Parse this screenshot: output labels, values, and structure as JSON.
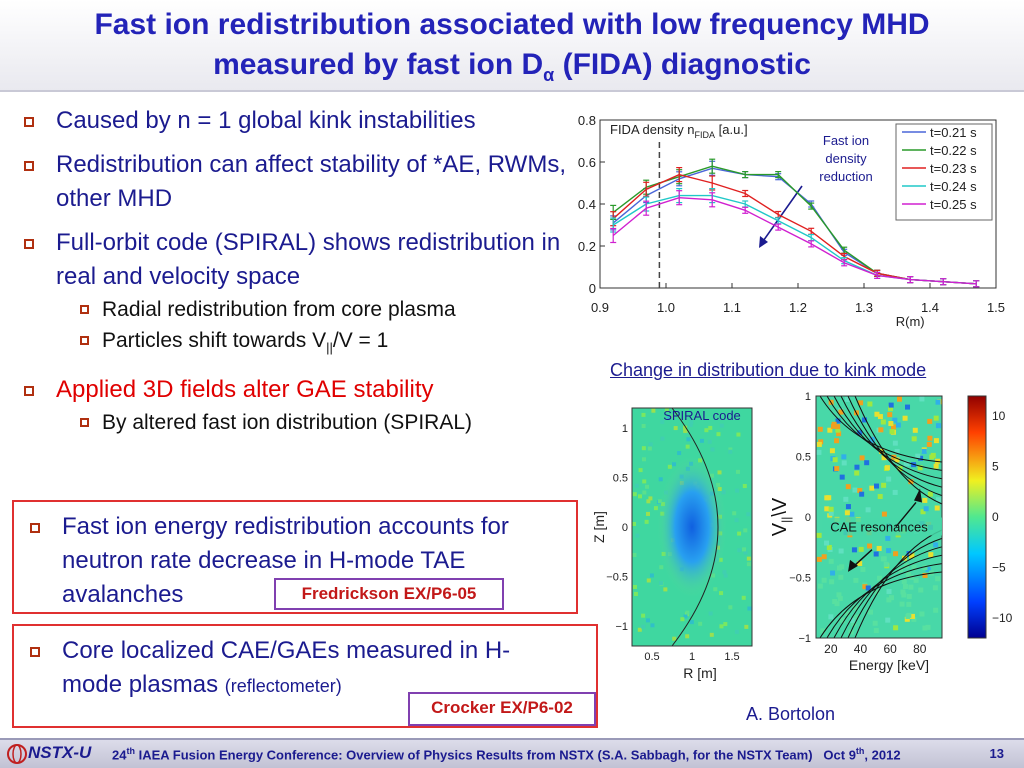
{
  "title": {
    "line1": "Fast ion redistribution associated with low frequency MHD",
    "line2_pre": "measured by fast ion D",
    "line2_sub": "α",
    "line2_post": " (FIDA) diagnostic"
  },
  "bullets": [
    {
      "text": "Caused by n = 1 global kink instabilities"
    },
    {
      "text": "Redistribution can affect stability of *AE, RWMs, other MHD"
    },
    {
      "text": "Full-orbit code (SPIRAL) shows redistribution in real and velocity space"
    },
    {
      "text": "Applied 3D fields alter GAE stability"
    }
  ],
  "sub_bullets": {
    "radial": "Radial redistribution from core plasma",
    "shift_pre": "Particles shift towards V",
    "shift_sub": "||",
    "shift_post": "/V = 1",
    "altered": "By altered fast ion distribution (SPIRAL)"
  },
  "box1": {
    "text": "Fast ion energy redistribution accounts for neutron rate decrease in H-mode TAE avalanches",
    "ref": "Fredrickson EX/P6-05"
  },
  "box2": {
    "text_main": "Core localized CAE/GAEs measured in H-mode plasmas",
    "text_paren": "(reflectometer)",
    "ref": "Crocker EX/P6-02"
  },
  "chart_caption": "Change in distribution due to kink mode",
  "author": "A. Bortolon",
  "footer": {
    "logo": "NSTX-U",
    "sup": "th",
    "text_num": "24",
    "text_rest": " IAEA Fusion Energy Conference: Overview of Physics Results from NSTX (S.A. Sabbagh, for the NSTX Team)",
    "date": "Oct 9",
    "date_sup": "th",
    "year": ", 2012",
    "page": "13"
  },
  "colors": {
    "title": "#2323b8",
    "text": "#1b1b8f",
    "red": "#e00000",
    "box": "#e03030"
  },
  "chart_data": [
    {
      "type": "line",
      "ylabel_pre": "FIDA density n",
      "ylabel_sub": "FIDA",
      "ylabel_post": " [a.u.]",
      "xlabel": "R(m)",
      "xlim": [
        0.9,
        1.5
      ],
      "ylim": [
        0,
        0.8
      ],
      "xticks": [
        "0.9",
        "1.0",
        "1.1",
        "1.2",
        "1.3",
        "1.4",
        "1.5"
      ],
      "yticks": [
        "0",
        "0.2",
        "0.4",
        "0.6",
        "0.8"
      ],
      "dashed_line_x": 0.99,
      "annotation": [
        "Fast ion",
        "density",
        "reduction"
      ],
      "legend_position": "top-right",
      "x": [
        0.92,
        0.97,
        1.02,
        1.07,
        1.12,
        1.17,
        1.22,
        1.27,
        1.32,
        1.37,
        1.42,
        1.47
      ],
      "series": [
        {
          "name": "t=0.21 s",
          "color": "#4a66d8",
          "values": [
            0.31,
            0.44,
            0.52,
            0.57,
            0.54,
            0.53,
            0.4,
            0.17,
            0.07,
            0.04,
            0.03,
            0.02
          ]
        },
        {
          "name": "t=0.22 s",
          "color": "#2a9a2a",
          "values": [
            0.36,
            0.48,
            0.53,
            0.58,
            0.54,
            0.54,
            0.39,
            0.18,
            0.07,
            0.04,
            0.03,
            0.02
          ]
        },
        {
          "name": "t=0.23 s",
          "color": "#e02020",
          "values": [
            0.33,
            0.47,
            0.54,
            0.5,
            0.45,
            0.35,
            0.27,
            0.15,
            0.07,
            0.04,
            0.03,
            0.02
          ]
        },
        {
          "name": "t=0.24 s",
          "color": "#20c8c8",
          "values": [
            0.3,
            0.4,
            0.44,
            0.44,
            0.4,
            0.32,
            0.24,
            0.13,
            0.06,
            0.04,
            0.03,
            0.02
          ]
        },
        {
          "name": "t=0.25 s",
          "color": "#d020d0",
          "values": [
            0.25,
            0.38,
            0.43,
            0.42,
            0.37,
            0.29,
            0.21,
            0.12,
            0.06,
            0.04,
            0.03,
            0.02
          ]
        }
      ]
    },
    {
      "type": "heatmap",
      "label": "SPIRAL code",
      "xlabel": "R [m]",
      "ylabel": "Z [m]",
      "xticks": [
        "0.5",
        "1",
        "1.5"
      ],
      "yticks": [
        "1",
        "0.5",
        "0",
        "−0.5",
        "−1"
      ],
      "xlim": [
        0.25,
        1.75
      ],
      "ylim": [
        -1.2,
        1.2
      ]
    },
    {
      "type": "heatmap",
      "xlabel": "Energy [keV]",
      "ylabel_pre": "V",
      "ylabel_sub": "||",
      "ylabel_post": "\\V",
      "xticks": [
        "20",
        "40",
        "60",
        "80"
      ],
      "yticks": [
        "1",
        "0.5",
        "0",
        "−0.5",
        "−1"
      ],
      "xlim": [
        10,
        95
      ],
      "ylim": [
        -1,
        1
      ],
      "annotation": "CAE resonances",
      "colorbar_ticks": [
        "10",
        "5",
        "0",
        "−5",
        "−10"
      ],
      "colorbar_range": [
        -12,
        12
      ]
    }
  ]
}
